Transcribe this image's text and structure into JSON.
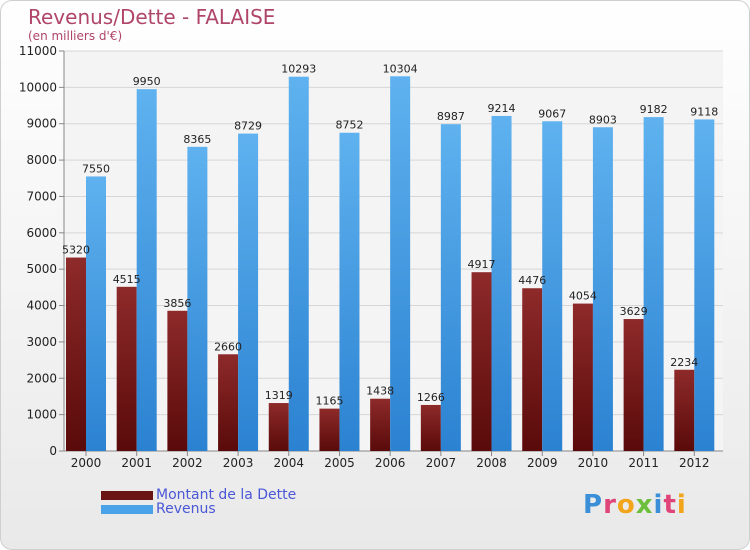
{
  "title": "Revenus/Dette - FALAISE",
  "subtitle": "(en milliers d'€)",
  "logo_text": "Proxiti",
  "colors": {
    "dette": "#7a1c1c",
    "revenus": "#4aa3e8",
    "title": "#b0456a",
    "legend_text": "#4a57d6"
  },
  "chart_data": {
    "type": "bar",
    "categories": [
      "2000",
      "2001",
      "2002",
      "2003",
      "2004",
      "2005",
      "2006",
      "2007",
      "2008",
      "2009",
      "2010",
      "2011",
      "2012"
    ],
    "series": [
      {
        "name": "Montant de la Dette",
        "values": [
          5320,
          4515,
          3856,
          2660,
          1319,
          1165,
          1438,
          1266,
          4917,
          4476,
          4054,
          3629,
          2234
        ]
      },
      {
        "name": "Revenus",
        "values": [
          7550,
          9950,
          8365,
          8729,
          10293,
          8752,
          10304,
          8987,
          9214,
          9067,
          8903,
          9182,
          9118
        ]
      }
    ],
    "yticks": [
      0,
      1000,
      2000,
      3000,
      4000,
      5000,
      6000,
      7000,
      8000,
      9000,
      10000,
      11000
    ],
    "ylim": [
      0,
      11000
    ],
    "grid": true,
    "legend_position": "bottom-left"
  }
}
